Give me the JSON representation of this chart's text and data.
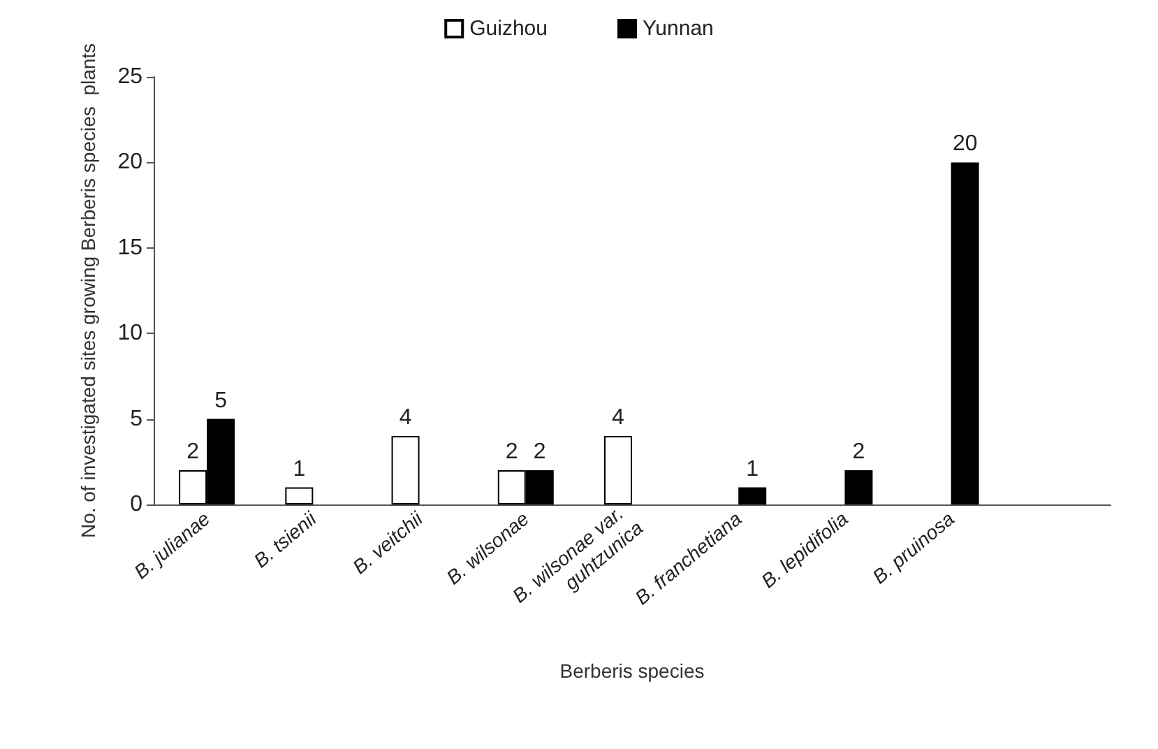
{
  "chart_data": {
    "type": "bar",
    "xlabel": "Berberis species",
    "ylabel": "No. of investigated sites growing Berberis species  plants",
    "categories": [
      "B. julianae",
      "B. tsienii",
      "B. veitchii",
      "B. wilsonae",
      "B. wilsonae var. guhtzunica",
      "B. franchetiana",
      "B. lepidifolia",
      "B. pruinosa",
      null
    ],
    "series": [
      {
        "name": "Guizhou",
        "color": "#ffffff",
        "values": [
          2,
          1,
          4,
          2,
          4,
          null,
          null,
          null,
          null
        ]
      },
      {
        "name": "Yunnan",
        "color": "#000000",
        "values": [
          5,
          null,
          null,
          2,
          null,
          1,
          2,
          20,
          null
        ]
      }
    ],
    "ylim": [
      0,
      25
    ],
    "yticks": [
      0,
      5,
      10,
      15,
      20,
      25
    ],
    "grid": false,
    "legend": "top",
    "data_labels": true
  }
}
